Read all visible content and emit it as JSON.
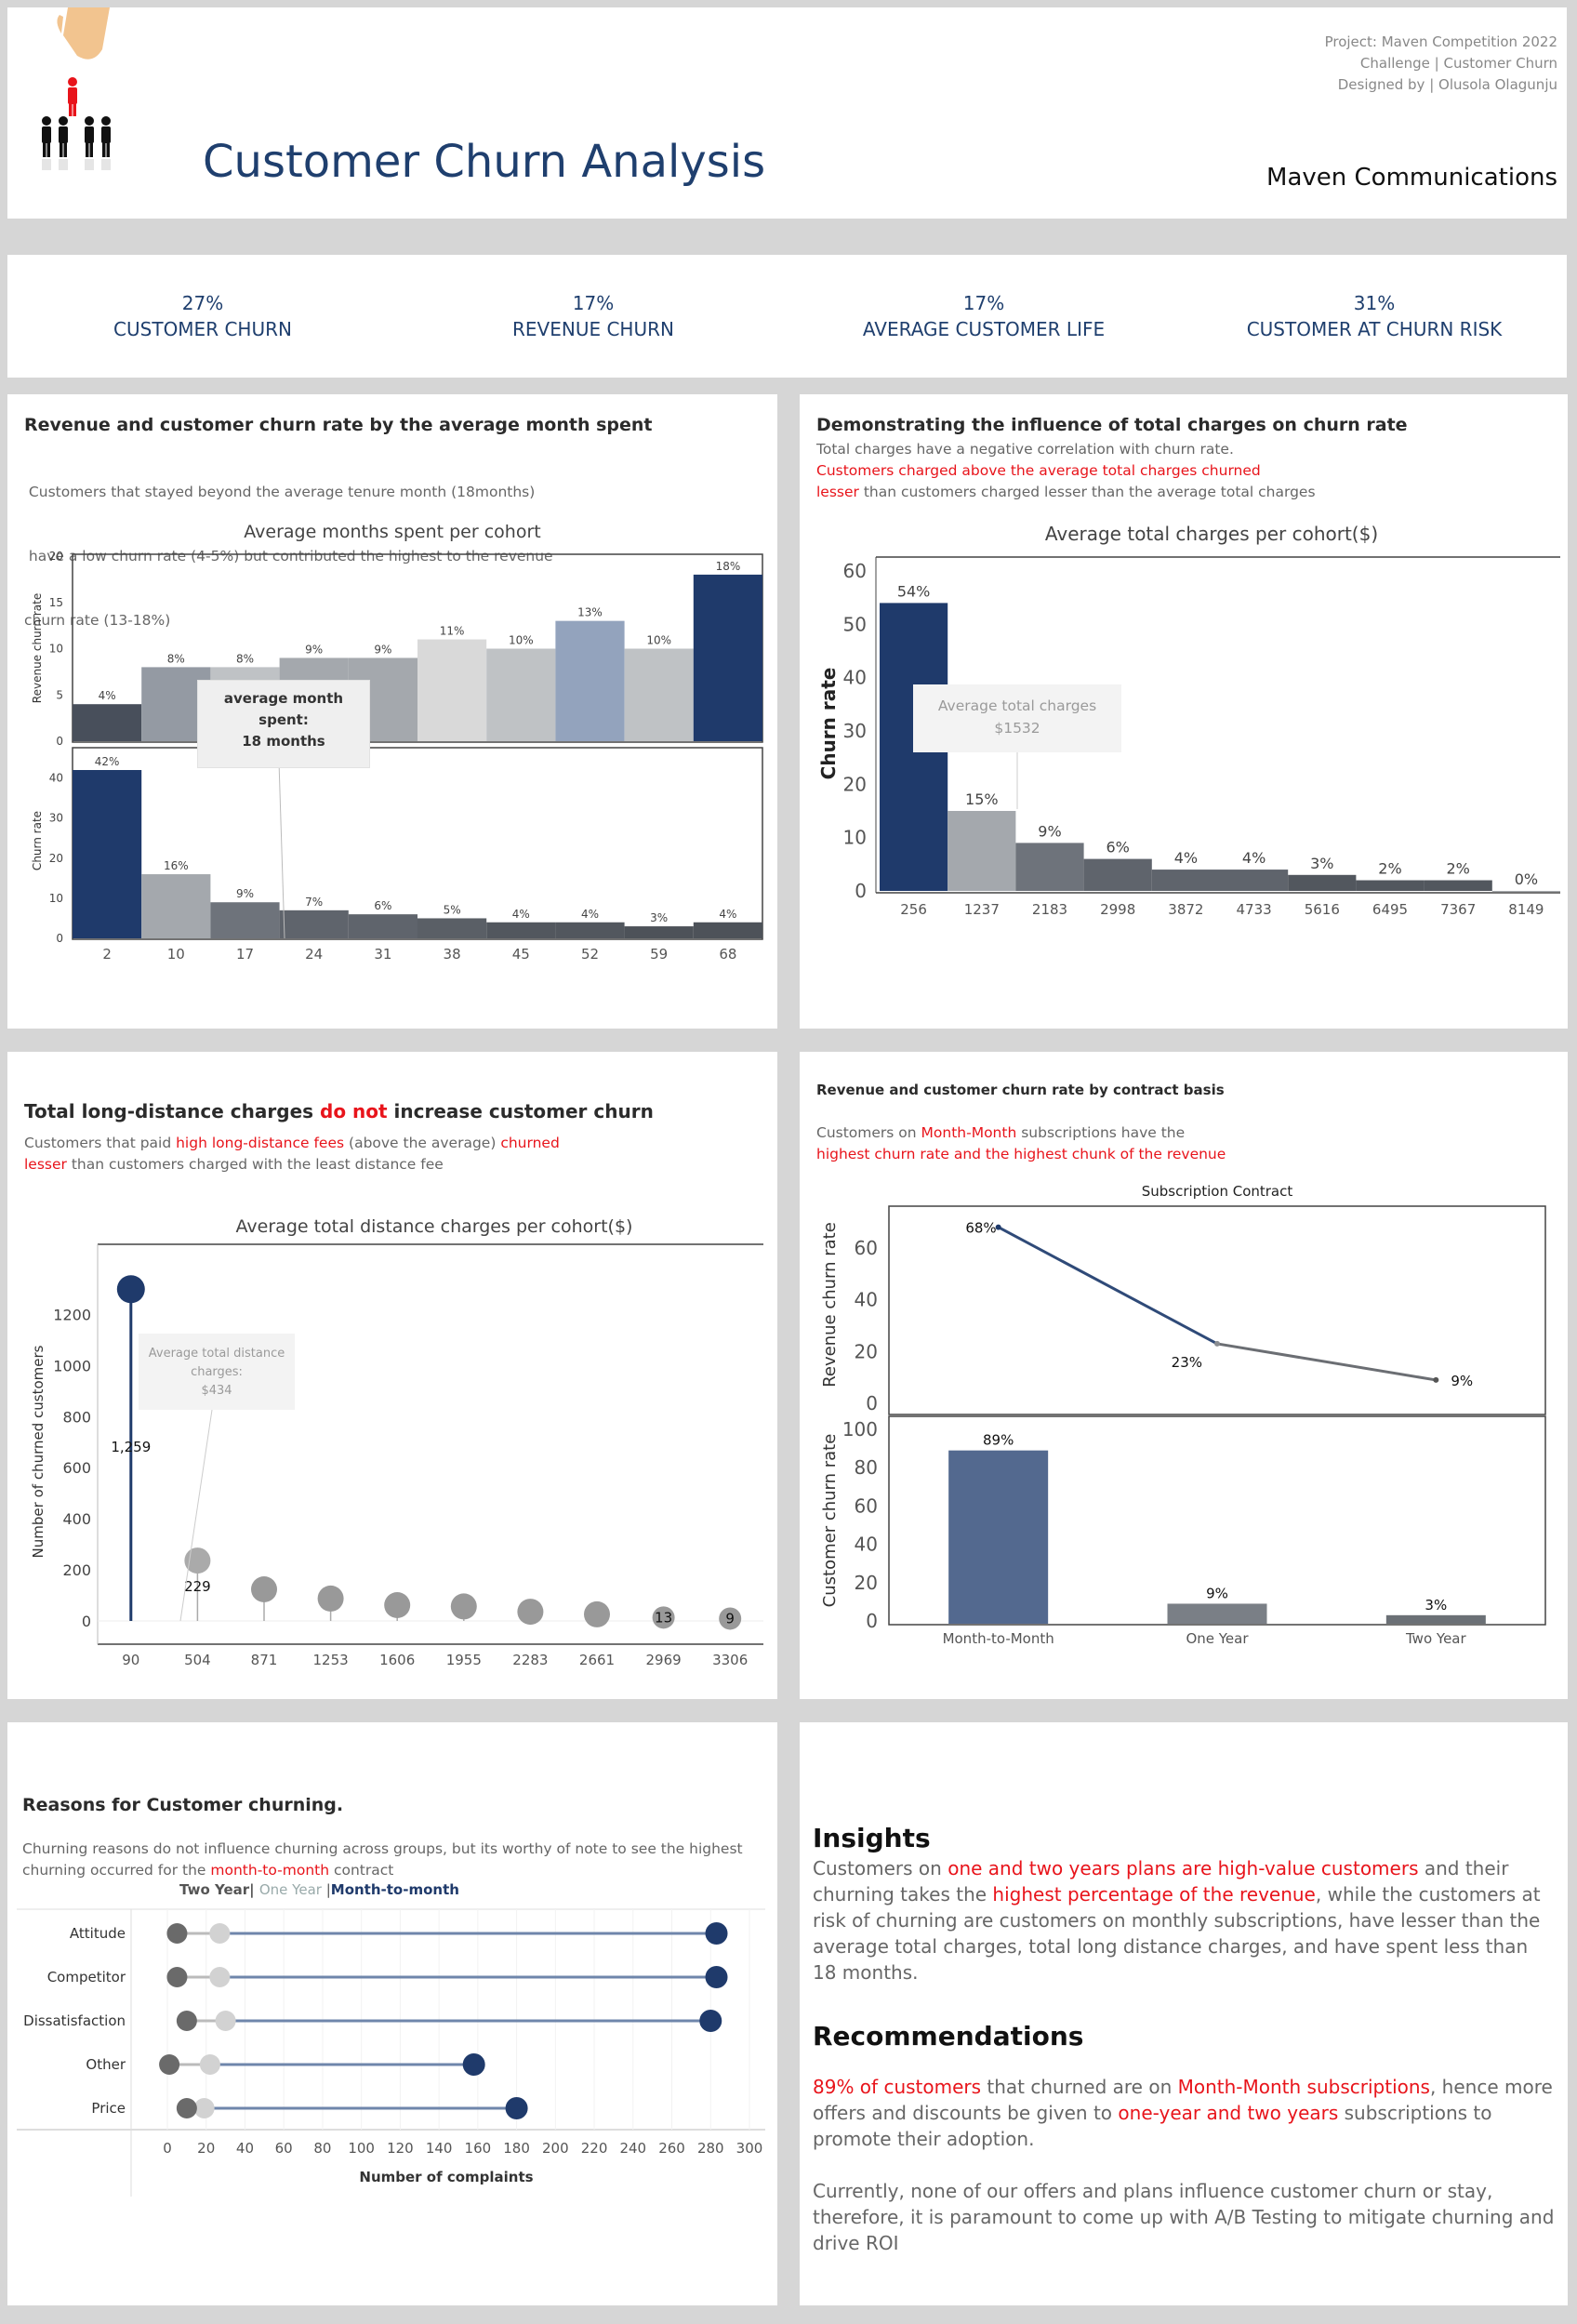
{
  "header": {
    "title": "Customer Churn Analysis",
    "company": "Maven Communications",
    "credit_lines": [
      "Project: Maven Competition 2022",
      "Challenge | Customer Churn",
      "Designed by | Olusola Olagunju"
    ],
    "logo_icon": "churn-people-icon"
  },
  "kpis": [
    {
      "value": "27%",
      "label": "CUSTOMER CHURN"
    },
    {
      "value": "17%",
      "label": "REVENUE CHURN"
    },
    {
      "value": "17%",
      "label": "AVERAGE CUSTOMER LIFE"
    },
    {
      "value": "31%",
      "label": "CUSTOMER AT CHURN RISK"
    }
  ],
  "colors": {
    "navy": "#1f3a6b",
    "red": "#e8141b",
    "grey": "#9e9e9e",
    "dark": "#4a4f57",
    "light": "#d9d9d9",
    "steel": "#53698f"
  },
  "panel1": {
    "title": "Revenue and customer churn rate by the average month spent",
    "desc": [
      " Customers that stayed beyond the average tenure month (18months)",
      " have a low churn rate (4-5%) but contributed the highest to the revenue",
      "churn rate (13-18%)"
    ],
    "chart_title": "Average months spent per cohort",
    "annotation": [
      "average month",
      "spent:",
      "18 months"
    ]
  },
  "panel2": {
    "title": "Demonstrating the influence of total charges on churn rate",
    "desc_plain1": "Total charges have a negative correlation with churn rate.",
    "desc_red1": "Customers charged above the average total charges churned",
    "desc_red2": "lesser",
    "desc_plain2": " than customers charged lesser than the average total charges",
    "chart_title": "Average total charges per cohort($)",
    "annotation": [
      "Average total charges",
      "$1532"
    ]
  },
  "panel3": {
    "title_a": "Total long-distance charges ",
    "title_red": "do not",
    "title_b": " increase  customer churn",
    "d1": "Customers that paid ",
    "d2": "high long-distance fees",
    "d3": " (above the average) ",
    "d4": "churned",
    "d5": "lesser",
    "d6": " than customers charged with the least distance fee",
    "chart_title": "Average total distance charges per cohort($)",
    "annotation": [
      "Average total distance",
      "charges:",
      "$434"
    ]
  },
  "panel4": {
    "title": "Revenue and customer churn rate by contract basis",
    "d1": "Customers on ",
    "d2": "Month-Month",
    "d3": " subscriptions have the",
    "d4": "highest churn rate and the highest chunk of the revenue",
    "chart_title": "Subscription Contract"
  },
  "panel5": {
    "title": "Reasons for Customer churning.",
    "d1": "Churning reasons do not influence churning across groups, but its worthy of note to see the highest",
    "d2": "churning occurred for the ",
    "d3": "month-to-month",
    "d4": " contract",
    "legend_a": "Two Year",
    "legend_sep1": "| ",
    "legend_b": "One Year",
    "legend_sep2": " |",
    "legend_c": "Month-to-month"
  },
  "insights": {
    "heading": "Insights",
    "p1": [
      "Customers on ",
      "one and two years plans are high-value customers",
      " and their churning takes the ",
      "highest percentage of the revenue",
      ", while the customers at risk of churning are customers on monthly subscriptions, have lesser than the average total charges, total long distance charges, and have spent less than 18 months."
    ],
    "rec_heading": "Recommendations",
    "p2": [
      "89% of customers",
      " that churned are on ",
      "Month-Month subscriptions",
      ", hence more offers and discounts be given to ",
      "one-year and two years",
      " subscriptions to promote their adoption."
    ],
    "p3": "Currently, none of our offers and plans influence customer churn or stay, therefore, it is paramount to come up with A/B Testing to  mitigate churning and drive ROI"
  },
  "chart_data": [
    {
      "type": "bar",
      "title": "Average months spent per cohort",
      "categories": [
        "2",
        "10",
        "17",
        "24",
        "31",
        "38",
        "45",
        "52",
        "59",
        "68"
      ],
      "ylabel": "Revenue churn rate",
      "ylim": [
        0,
        20
      ],
      "yticks": [
        "0",
        "5",
        "10",
        "15",
        "20"
      ],
      "values": [
        4,
        8,
        8,
        9,
        9,
        11,
        10,
        13,
        10,
        18
      ],
      "labels": [
        "4%",
        "8%",
        "8%",
        "9%",
        "9%",
        "11%",
        "10%",
        "13%",
        "10%",
        "18%"
      ]
    },
    {
      "type": "bar",
      "categories": [
        "2",
        "10",
        "17",
        "24",
        "31",
        "38",
        "45",
        "52",
        "59",
        "68"
      ],
      "ylabel": "Churn rate",
      "ylim": [
        0,
        42
      ],
      "yticks": [
        "0",
        "10",
        "20",
        "30",
        "40"
      ],
      "values": [
        42,
        16,
        9,
        7,
        6,
        5,
        4,
        4,
        3,
        4
      ],
      "labels": [
        "42%",
        "16%",
        "9%",
        "7%",
        "6%",
        "5%",
        "4%",
        "4%",
        "3%",
        "4%"
      ]
    },
    {
      "type": "bar",
      "title": "Average total charges per cohort($)",
      "categories": [
        "256",
        "1237",
        "2183",
        "2998",
        "3872",
        "4733",
        "5616",
        "6495",
        "7367",
        "8149"
      ],
      "ylabel": "Churn  rate",
      "ylim": [
        0,
        60
      ],
      "yticks": [
        "0",
        "10",
        "20",
        "30",
        "40",
        "50",
        "60"
      ],
      "values": [
        54,
        15,
        9,
        6,
        4,
        4,
        3,
        2,
        2,
        0
      ],
      "labels": [
        "54%",
        "15%",
        "9%",
        "6%",
        "4%",
        "4%",
        "3%",
        "2%",
        "2%",
        "0%"
      ]
    },
    {
      "type": "scatter",
      "title": "Average total distance charges per cohort($)",
      "categories": [
        "90",
        "504",
        "871",
        "1253",
        "1606",
        "1955",
        "2283",
        "2661",
        "2969",
        "3306"
      ],
      "ylabel": "Number of churned customers",
      "ylim": [
        0,
        1300
      ],
      "yticks": [
        "0",
        "200",
        "400",
        "600",
        "800",
        "1000",
        "1200"
      ],
      "values": [
        1259,
        229,
        120,
        85,
        60,
        55,
        35,
        25,
        13,
        9
      ],
      "labels": [
        "1,259",
        "229",
        "",
        "",
        "",
        "",
        "",
        "",
        "13",
        "9"
      ]
    },
    {
      "type": "line",
      "title": "Subscription Contract",
      "categories": [
        "Month-to-Month",
        "One Year",
        "Two Year"
      ],
      "ylabel": "Revenue churn rate",
      "ylim": [
        0,
        70
      ],
      "yticks": [
        "0",
        "20",
        "40",
        "60"
      ],
      "values": [
        68,
        23,
        9
      ],
      "labels": [
        "68%",
        "23%",
        "9%"
      ]
    },
    {
      "type": "bar",
      "categories": [
        "Month-to-Month",
        "One Year",
        "Two Year"
      ],
      "ylabel": "Customer churn rate",
      "ylim": [
        0,
        100
      ],
      "yticks": [
        "0",
        "20",
        "40",
        "60",
        "80",
        "100"
      ],
      "values": [
        89,
        9,
        3
      ],
      "labels": [
        "89%",
        "9%",
        "3%"
      ]
    },
    {
      "type": "scatter",
      "title": "Reasons for Customer churning.",
      "categories": [
        "Attitude",
        "Competitor",
        "Dissatisfaction",
        "Other",
        "Price"
      ],
      "xlabel": "Number of complaints",
      "xlim": [
        0,
        300
      ],
      "xticks": [
        "0",
        "20",
        "40",
        "60",
        "80",
        "100",
        "120",
        "140",
        "160",
        "180",
        "200",
        "220",
        "240",
        "260",
        "280",
        "300"
      ],
      "series": [
        {
          "name": "Two Year",
          "values": [
            5,
            5,
            10,
            1,
            10
          ]
        },
        {
          "name": "One Year",
          "values": [
            27,
            27,
            30,
            22,
            19
          ]
        },
        {
          "name": "Month-to-month",
          "values": [
            283,
            283,
            280,
            158,
            180
          ]
        }
      ]
    }
  ]
}
